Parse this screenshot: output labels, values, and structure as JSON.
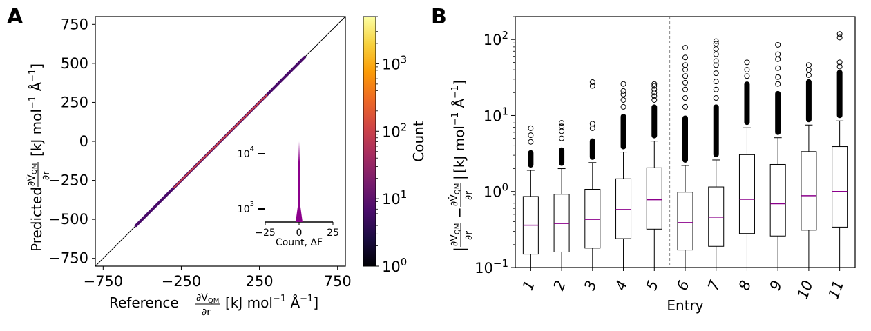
{
  "chart_data": [
    {
      "panel_label": "A",
      "type": "heatmap",
      "xlabel": {
        "prefix": "Reference",
        "frac_num": "∂V",
        "frac_num_sub": "QM",
        "frac_den": "∂r",
        "unit": "[kJ mol",
        "unit_sup": "−1",
        "unit_tail": " Å",
        "unit_sup2": "−1",
        "unit_end": "]"
      },
      "ylabel": {
        "prefix": "Predicted",
        "frac_num": "∂V̂",
        "frac_num_sub": "QM",
        "frac_den": "∂r",
        "unit": "[kJ mol",
        "unit_sup": "−1",
        "unit_tail": " Å",
        "unit_sup2": "−1",
        "unit_end": "]"
      },
      "xlim": [
        -800,
        800
      ],
      "ylim": [
        -800,
        800
      ],
      "xticks": [
        -750,
        -250,
        250,
        750
      ],
      "xtick_labels": [
        "−750",
        "−250",
        "250",
        "750"
      ],
      "yticks": [
        750,
        500,
        250,
        0,
        -250,
        -500,
        -750
      ],
      "ytick_labels": [
        "750",
        "500",
        "250",
        "0",
        "−250",
        "−500",
        "−750"
      ],
      "density_diagonal": [
        -540,
        540
      ],
      "colorbar": {
        "label": "Count",
        "scale": "log",
        "min": 1,
        "max": 5000,
        "ticks": [
          1,
          10,
          100,
          1000
        ],
        "tick_labels": [
          {
            "base": "10",
            "exp": "0"
          },
          {
            "base": "10",
            "exp": "1"
          },
          {
            "base": "10",
            "exp": "2"
          },
          {
            "base": "10",
            "exp": "3"
          }
        ],
        "colors": [
          "#000004",
          "#1b0c41",
          "#4a0c6b",
          "#781c6d",
          "#a52c60",
          "#cf4446",
          "#ed6925",
          "#fb9b06",
          "#f7d13d",
          "#fcffa4"
        ]
      },
      "inset": {
        "type": "histogram",
        "xlabel": "Count, ΔF",
        "xticks": [
          -25,
          0,
          25
        ],
        "xtick_labels": [
          "−25",
          "0",
          "25"
        ],
        "yticks": [
          {
            "base": "10",
            "exp": "4"
          },
          {
            "base": "10",
            "exp": "3"
          }
        ],
        "ylim_log": [
          2.9,
          4.2
        ],
        "peak_x": 0,
        "peak_log_count": 4.2,
        "color": "#8b008b"
      }
    },
    {
      "panel_label": "B",
      "type": "box",
      "xlabel": "Entry",
      "ylabel": {
        "frac1_num": "∂V",
        "frac1_sub": "QM",
        "frac1_den": "∂r",
        "frac2_num": "∂V̂",
        "frac2_sub": "QM",
        "frac2_den": "∂r",
        "unit": "[kJ mol",
        "unit_sup": "−1",
        "unit_tail": " Å",
        "unit_sup2": "−1",
        "unit_end": "]"
      },
      "yscale": "log",
      "ylim": [
        0.1,
        200
      ],
      "yticks": [
        {
          "base": "10",
          "exp": "−1",
          "value": 0.1
        },
        {
          "base": "10",
          "exp": "0",
          "value": 1
        },
        {
          "base": "10",
          "exp": "1",
          "value": 10
        },
        {
          "base": "10",
          "exp": "2",
          "value": 100
        }
      ],
      "categories": [
        "1",
        "2",
        "3",
        "4",
        "5",
        "6",
        "7",
        "8",
        "9",
        "10",
        "11"
      ],
      "separator_after_index": 4,
      "median_color": "#8b008b",
      "boxes": [
        {
          "whisker_low": 0.1,
          "q1": 0.15,
          "median": 0.36,
          "q3": 0.86,
          "whisker_high": 1.9,
          "flier_max": 6.8,
          "solid_top": 3.5,
          "sparse_outliers": [
            4.5,
            5.5,
            6.8
          ]
        },
        {
          "whisker_low": 0.1,
          "q1": 0.16,
          "median": 0.38,
          "q3": 0.92,
          "whisker_high": 2.0,
          "flier_max": 8.0,
          "solid_top": 3.8,
          "sparse_outliers": [
            5.0,
            6.2,
            7.2,
            8.0
          ]
        },
        {
          "whisker_low": 0.1,
          "q1": 0.18,
          "median": 0.43,
          "q3": 1.07,
          "whisker_high": 2.4,
          "flier_max": 27.5,
          "solid_top": 5.0,
          "sparse_outliers": [
            6.8,
            7.8,
            24.5,
            27.5
          ]
        },
        {
          "whisker_low": 0.1,
          "q1": 0.24,
          "median": 0.58,
          "q3": 1.47,
          "whisker_high": 3.3,
          "flier_max": 26.0,
          "solid_top": 10.5,
          "sparse_outliers": [
            13,
            16,
            19,
            21,
            26
          ]
        },
        {
          "whisker_low": 0.1,
          "q1": 0.32,
          "median": 0.78,
          "q3": 2.05,
          "whisker_high": 4.6,
          "flier_max": 26.0,
          "solid_top": 14.0,
          "sparse_outliers": [
            16,
            18,
            20,
            22,
            24.5,
            26
          ]
        },
        {
          "whisker_low": 0.1,
          "q1": 0.17,
          "median": 0.39,
          "q3": 0.98,
          "whisker_high": 2.2,
          "flier_max": 78.0,
          "solid_top": 10.0,
          "sparse_outliers": [
            13,
            17,
            22,
            27,
            33,
            40,
            46,
            58,
            78
          ]
        },
        {
          "whisker_low": 0.1,
          "q1": 0.19,
          "median": 0.46,
          "q3": 1.15,
          "whisker_high": 2.6,
          "flier_max": 95.0,
          "solid_top": 14.0,
          "sparse_outliers": [
            17,
            22,
            28,
            36,
            46,
            52,
            64,
            75,
            88,
            95
          ]
        },
        {
          "whisker_low": 0.1,
          "q1": 0.28,
          "median": 0.79,
          "q3": 3.05,
          "whisker_high": 6.9,
          "flier_max": 50.0,
          "solid_top": 28.0,
          "sparse_outliers": [
            33,
            40,
            50
          ]
        },
        {
          "whisker_low": 0.1,
          "q1": 0.26,
          "median": 0.69,
          "q3": 2.27,
          "whisker_high": 5.1,
          "flier_max": 85.0,
          "solid_top": 21.0,
          "sparse_outliers": [
            26,
            32,
            42,
            55,
            64,
            85
          ]
        },
        {
          "whisker_low": 0.1,
          "q1": 0.31,
          "median": 0.88,
          "q3": 3.35,
          "whisker_high": 7.5,
          "flier_max": 46.0,
          "solid_top": 30.0,
          "sparse_outliers": [
            34,
            40,
            46
          ]
        },
        {
          "whisker_low": 0.1,
          "q1": 0.34,
          "median": 1.0,
          "q3": 3.9,
          "whisker_high": 8.5,
          "flier_max": 118.0,
          "solid_top": 40.0,
          "sparse_outliers": [
            44,
            50,
            106,
            118
          ]
        }
      ]
    }
  ]
}
